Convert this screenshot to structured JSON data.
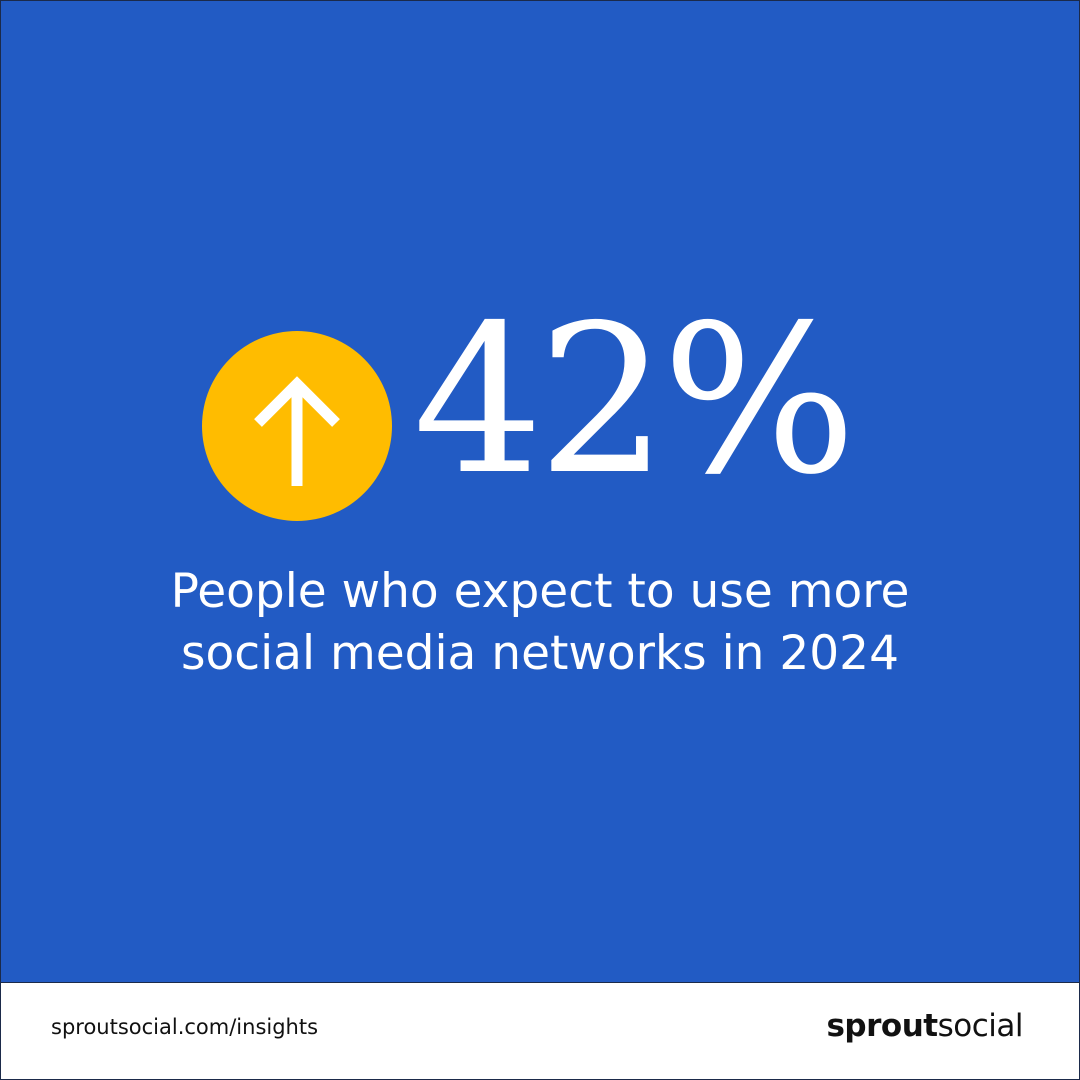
{
  "stat": {
    "value": "42%"
  },
  "description": {
    "lines": [
      "People who expect to use more",
      "social media networks in 2024"
    ]
  },
  "footer": {
    "url": "sproutsocial.com/insights",
    "brand": {
      "bold": "sprout",
      "regular": "social"
    }
  }
}
